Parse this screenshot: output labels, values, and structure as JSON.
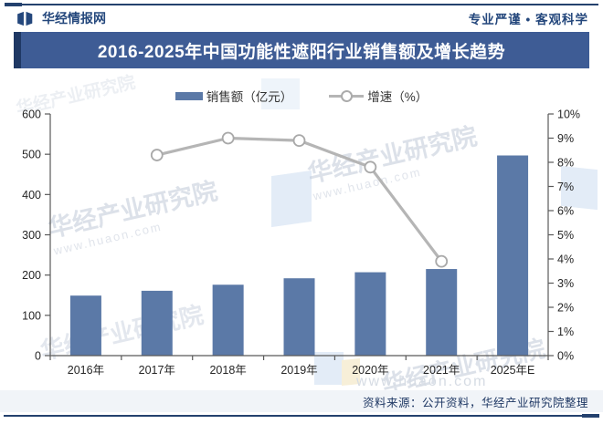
{
  "header": {
    "brand": "华经情报网",
    "slogan": "专业严谨 • 客观科学"
  },
  "title_bar": {
    "title": "2016-2025年中国功能性遮阳行业销售额及增长趋势"
  },
  "legend": {
    "sales_label": "销售额（亿元）",
    "growth_label": "增速（%）"
  },
  "chart_data": {
    "type": "bar",
    "combo": "bar+line",
    "title": "2016-2025年中国功能性遮阳行业销售额及增长趋势",
    "categories": [
      "2016年",
      "2017年",
      "2018年",
      "2019年",
      "2020年",
      "2021年",
      "2025年E"
    ],
    "series": [
      {
        "name": "销售额（亿元）",
        "type": "bar",
        "axis": "left",
        "values": [
          149,
          161,
          176,
          192,
          207,
          215,
          497
        ]
      },
      {
        "name": "增速（%）",
        "type": "line",
        "axis": "right",
        "values": [
          null,
          8.3,
          9.0,
          8.9,
          7.8,
          3.9,
          null
        ]
      }
    ],
    "left_axis": {
      "min": 0,
      "max": 600,
      "step": 100,
      "suffix": ""
    },
    "right_axis": {
      "min": 0,
      "max": 10,
      "step": 1,
      "suffix": "%"
    },
    "grid": false,
    "legend_position": "top"
  },
  "source_note": "资料来源：公开资料，华经产业研究院整理",
  "watermark": {
    "name": "华经产业研究院",
    "site": "www.huaon.com"
  },
  "colors": {
    "bar": "#5b79a7",
    "line": "#b5b5b5",
    "marker_fill": "#ffffff",
    "marker_stroke": "#a9a9a9",
    "axis": "#595959",
    "tick_text": "#262626",
    "title_bar_bg": "#3e5c95",
    "accent": "#1f3864"
  }
}
